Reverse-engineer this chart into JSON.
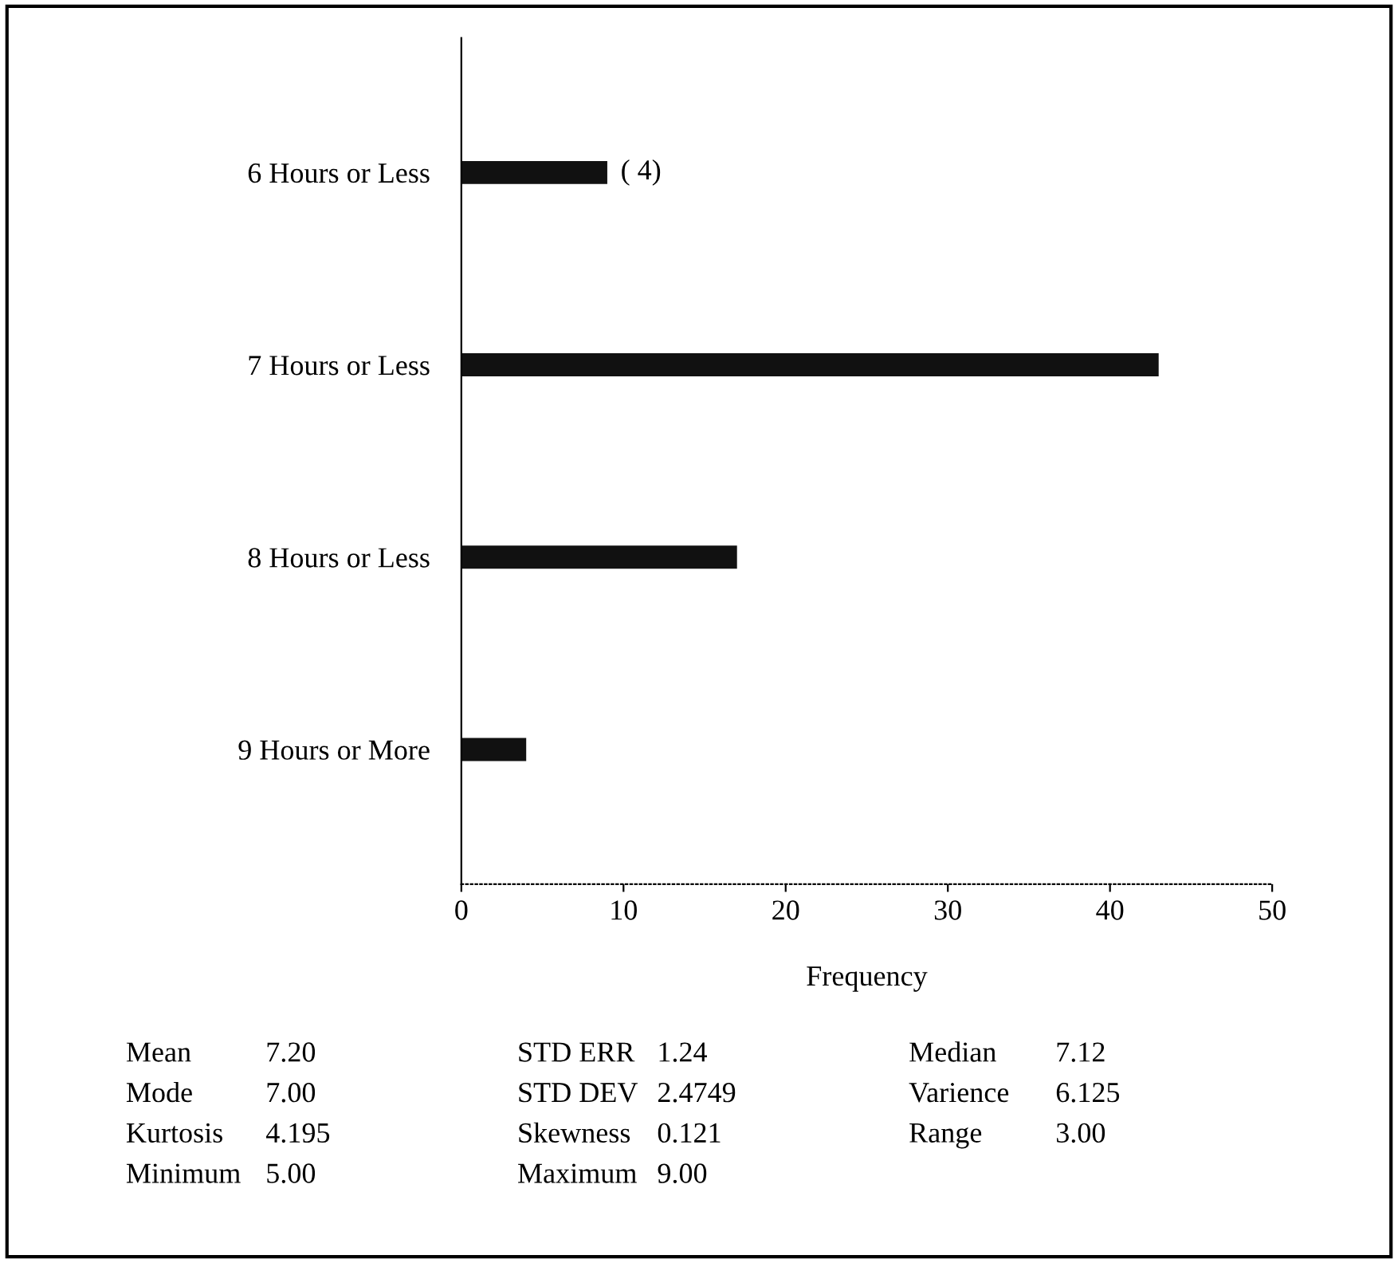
{
  "chart_data": {
    "type": "bar",
    "orientation": "horizontal",
    "xlabel": "Frequency",
    "categories": [
      "6 Hours or Less",
      "7 Hours or Less",
      "8 Hours or Less",
      "9 Hours or More"
    ],
    "values": [
      9,
      43,
      17,
      4
    ],
    "color": "#111111",
    "xlim": [
      0,
      50
    ],
    "xticks": [
      0,
      10,
      20,
      30,
      40,
      50
    ],
    "grid": false,
    "annotations": [
      {
        "text": "( 4)",
        "x": 9,
        "y": "6 Hours or Less"
      },
      "Mean",
      "7.20",
      "STD ERR",
      "1.24",
      "Median",
      "7.12",
      "Mode",
      "7.00",
      "STD DEV",
      "2.4749",
      "Varience",
      "6.125",
      "Kurtosis",
      "4.195",
      "Skewness",
      "0.121",
      "Range",
      "3.00",
      "Minimum",
      "5.00",
      "Maximum",
      "9.00"
    ]
  }
}
